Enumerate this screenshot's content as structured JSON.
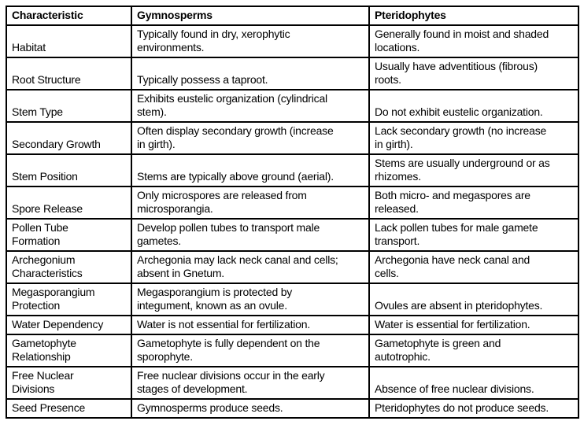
{
  "table": {
    "columns": [
      {
        "key": "characteristic",
        "label": "Characteristic"
      },
      {
        "key": "gymnosperms",
        "label": "Gymnosperms"
      },
      {
        "key": "pteridophytes",
        "label": "Pteridophytes"
      }
    ],
    "rows": [
      {
        "characteristic": "Habitat",
        "gymnosperms": "Typically found in dry, xerophytic\nenvironments.",
        "pteridophytes": "Generally found in moist and shaded\nlocations."
      },
      {
        "characteristic": "Root Structure",
        "gymnosperms": "Typically possess a taproot.",
        "pteridophytes": "Usually have adventitious (fibrous)\nroots."
      },
      {
        "characteristic": "Stem Type",
        "gymnosperms": "Exhibits eustelic organization (cylindrical\nstem).",
        "pteridophytes": "Do not exhibit eustelic organization."
      },
      {
        "characteristic": "Secondary Growth",
        "gymnosperms": "Often display secondary growth (increase\nin girth).",
        "pteridophytes": "Lack secondary growth (no increase\nin girth)."
      },
      {
        "characteristic": "Stem Position",
        "gymnosperms": "Stems are typically above ground (aerial).",
        "pteridophytes": "Stems are usually underground or as\nrhizomes."
      },
      {
        "characteristic": "Spore Release",
        "gymnosperms": "Only microspores are released from\nmicrosporangia.",
        "pteridophytes": "Both micro- and megaspores are\nreleased."
      },
      {
        "characteristic": "Pollen Tube\nFormation",
        "gymnosperms": "Develop pollen tubes to transport male\ngametes.",
        "pteridophytes": "Lack pollen tubes for male gamete\ntransport."
      },
      {
        "characteristic": "Archegonium\nCharacteristics",
        "gymnosperms": "Archegonia may lack neck canal and cells;\nabsent in Gnetum.",
        "pteridophytes": "Archegonia have neck canal and\ncells."
      },
      {
        "characteristic": "Megasporangium\nProtection",
        "gymnosperms": "Megasporangium is protected by\nintegument, known as an ovule.",
        "pteridophytes": "Ovules are absent in pteridophytes."
      },
      {
        "characteristic": "Water Dependency",
        "gymnosperms": "Water is not essential for fertilization.",
        "pteridophytes": "Water is essential for fertilization."
      },
      {
        "characteristic": "Gametophyte\nRelationship",
        "gymnosperms": "Gametophyte is fully dependent on the\nsporophyte.",
        "pteridophytes": "Gametophyte is green and\nautotrophic."
      },
      {
        "characteristic": "Free Nuclear\nDivisions",
        "gymnosperms": "Free nuclear divisions occur in the early\nstages of development.",
        "pteridophytes": "Absence of free nuclear divisions."
      },
      {
        "characteristic": "Seed Presence",
        "gymnosperms": "Gymnosperms produce seeds.",
        "pteridophytes": "Pteridophytes do not produce seeds."
      }
    ]
  }
}
